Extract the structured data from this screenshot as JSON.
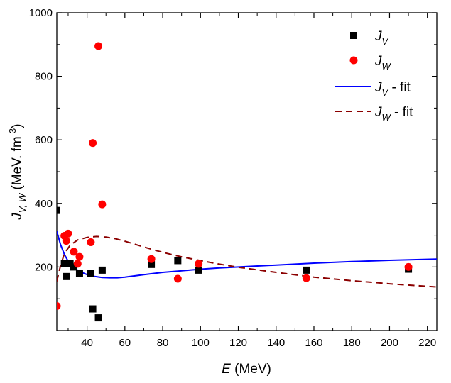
{
  "chart_data": {
    "type": "scatter",
    "title": "",
    "xlabel": {
      "italic": "E",
      "rest": " (MeV)"
    },
    "ylabel": {
      "base": "J",
      "sub": "V, W",
      "rest": " (MeV. fm",
      "sup": "-3",
      "close": ")"
    },
    "xlim": [
      24,
      225
    ],
    "ylim": [
      0,
      1000
    ],
    "xticks": [
      40,
      60,
      80,
      100,
      120,
      140,
      160,
      180,
      200,
      220
    ],
    "yticks": [
      200,
      400,
      600,
      800,
      1000
    ],
    "grid": false,
    "legend_position": "top-right",
    "series": [
      {
        "name": "J_V",
        "label_base": "J",
        "label_sub": "V",
        "label_suffix": "",
        "kind": "scatter",
        "marker": "square",
        "color": "#000000",
        "points": [
          [
            24,
            378
          ],
          [
            28,
            212
          ],
          [
            29,
            170
          ],
          [
            31,
            210
          ],
          [
            33,
            200
          ],
          [
            36,
            180
          ],
          [
            42,
            180
          ],
          [
            43,
            68
          ],
          [
            46,
            40
          ],
          [
            48,
            190
          ],
          [
            74,
            208
          ],
          [
            88,
            220
          ],
          [
            99,
            190
          ],
          [
            156,
            190
          ],
          [
            210,
            193
          ]
        ]
      },
      {
        "name": "J_W",
        "label_base": "J",
        "label_sub": "W",
        "label_suffix": "",
        "kind": "scatter",
        "marker": "circle",
        "color": "#ff0000",
        "points": [
          [
            24,
            77
          ],
          [
            28,
            298
          ],
          [
            29,
            282
          ],
          [
            30,
            305
          ],
          [
            33,
            248
          ],
          [
            35,
            210
          ],
          [
            36,
            232
          ],
          [
            42,
            278
          ],
          [
            43,
            590
          ],
          [
            46,
            895
          ],
          [
            48,
            397
          ],
          [
            74,
            225
          ],
          [
            88,
            163
          ],
          [
            99,
            210
          ],
          [
            156,
            165
          ],
          [
            210,
            200
          ]
        ]
      },
      {
        "name": "J_V - fit",
        "label_base": "J",
        "label_sub": "V",
        "label_suffix": " - fit",
        "kind": "line",
        "style": "solid",
        "color": "#0000ff",
        "points": [
          [
            24,
            312
          ],
          [
            26,
            270
          ],
          [
            28,
            240
          ],
          [
            30,
            218
          ],
          [
            33,
            198
          ],
          [
            36,
            186
          ],
          [
            40,
            176
          ],
          [
            44,
            170
          ],
          [
            48,
            167
          ],
          [
            52,
            166
          ],
          [
            56,
            166
          ],
          [
            60,
            168
          ],
          [
            70,
            176
          ],
          [
            80,
            183
          ],
          [
            90,
            188
          ],
          [
            100,
            193
          ],
          [
            110,
            197
          ],
          [
            120,
            200
          ],
          [
            140,
            206
          ],
          [
            160,
            212
          ],
          [
            180,
            217
          ],
          [
            200,
            221
          ],
          [
            225,
            225
          ]
        ]
      },
      {
        "name": "J_W - fit",
        "label_base": "J",
        "label_sub": "W",
        "label_suffix": " - fit",
        "kind": "line",
        "style": "dashed",
        "color": "#8b0000",
        "points": [
          [
            24,
            155
          ],
          [
            26,
            205
          ],
          [
            28,
            242
          ],
          [
            31,
            268
          ],
          [
            35,
            285
          ],
          [
            40,
            293
          ],
          [
            45,
            296
          ],
          [
            50,
            294
          ],
          [
            55,
            289
          ],
          [
            60,
            281
          ],
          [
            70,
            263
          ],
          [
            80,
            246
          ],
          [
            90,
            232
          ],
          [
            100,
            220
          ],
          [
            110,
            209
          ],
          [
            120,
            199
          ],
          [
            140,
            183
          ],
          [
            160,
            168
          ],
          [
            180,
            157
          ],
          [
            200,
            147
          ],
          [
            225,
            137
          ]
        ]
      }
    ]
  }
}
